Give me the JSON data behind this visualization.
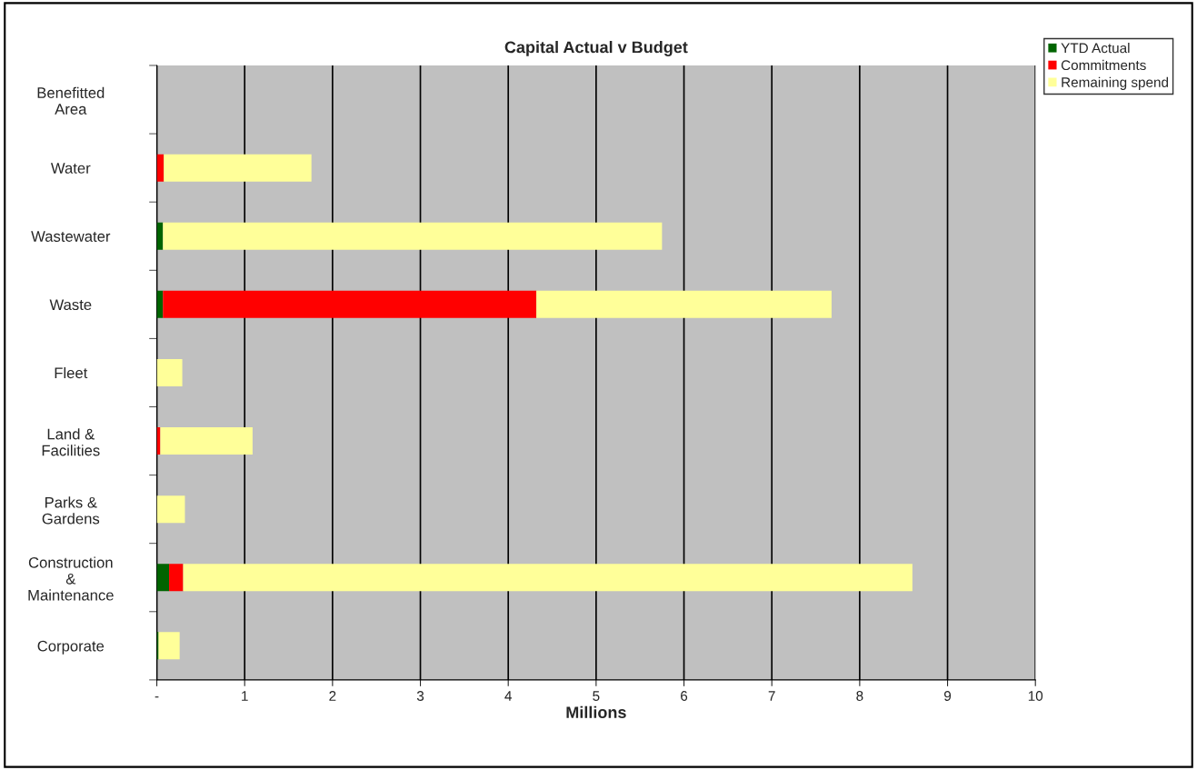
{
  "chart_data": {
    "type": "bar",
    "orientation": "horizontal",
    "stacked": true,
    "title": "Capital Actual v Budget",
    "xlabel": "Millions",
    "categories": [
      "Benefitted\nArea",
      "Water",
      "Wastewater",
      "Waste",
      "Fleet",
      "Land &\nFacilities",
      "Parks &\nGardens",
      "Construction\n&\nMaintenance",
      "Corporate"
    ],
    "series": [
      {
        "name": "YTD Actual",
        "color": "#006400",
        "values": [
          0,
          0,
          0.07,
          0.07,
          0,
          0,
          0,
          0.14,
          0.02
        ]
      },
      {
        "name": "Commitments",
        "color": "#ff0000",
        "values": [
          0,
          0.08,
          0,
          4.25,
          0,
          0.04,
          0,
          0.16,
          0
        ]
      },
      {
        "name": "Remaining spend",
        "color": "#ffff99",
        "values": [
          0,
          1.68,
          5.68,
          3.36,
          0.29,
          1.05,
          0.32,
          8.3,
          0.24
        ]
      }
    ],
    "xlim": [
      0,
      10
    ],
    "xticks": [
      {
        "value": 0,
        "label": "-"
      },
      1,
      2,
      3,
      4,
      5,
      6,
      7,
      8,
      9,
      10
    ],
    "grid": "x",
    "legend": "top right"
  }
}
